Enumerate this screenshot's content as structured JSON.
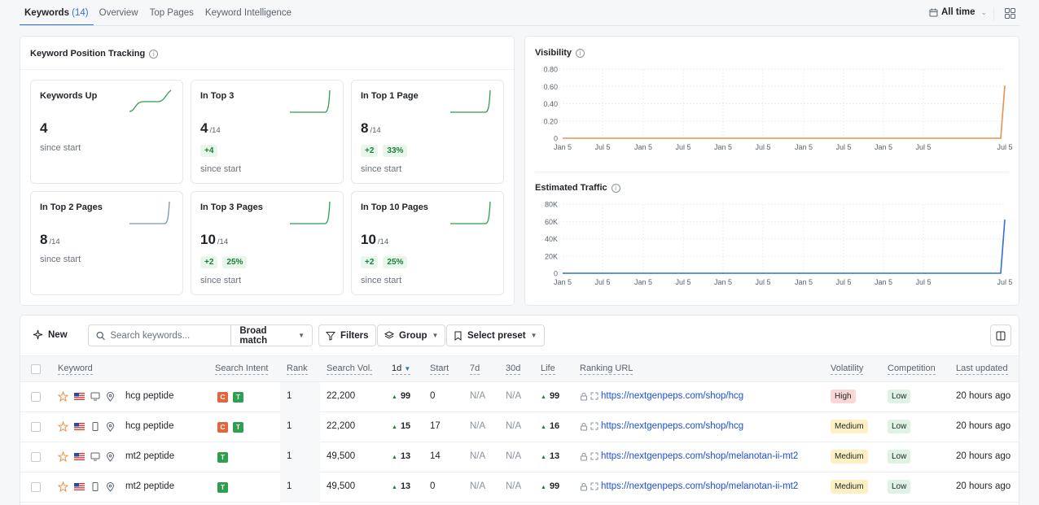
{
  "tabs": [
    {
      "label": "Keywords",
      "count": "(14)"
    },
    {
      "label": "Overview"
    },
    {
      "label": "Top Pages"
    },
    {
      "label": "Keyword Intelligence"
    }
  ],
  "date_range": "All time",
  "tracking": {
    "title": "Keyword Position Tracking",
    "stats": [
      {
        "label": "Keywords Up",
        "value": "4",
        "of": "",
        "chips": [],
        "since": "since start",
        "spark": "s-curve"
      },
      {
        "label": "In Top 3",
        "value": "4",
        "of": "/14",
        "chips": [
          "+4"
        ],
        "since": "since start",
        "spark": "late-rise"
      },
      {
        "label": "In Top 1 Page",
        "value": "8",
        "of": "/14",
        "chips": [
          "+2",
          "33%"
        ],
        "since": "since start",
        "spark": "late-rise"
      },
      {
        "label": "In Top 2 Pages",
        "value": "8",
        "of": "/14",
        "chips": [],
        "since": "since start",
        "spark": "late-rise-blue"
      },
      {
        "label": "In Top 3 Pages",
        "value": "10",
        "of": "/14",
        "chips": [
          "+2",
          "25%"
        ],
        "since": "since start",
        "spark": "late-rise"
      },
      {
        "label": "In Top 10 Pages",
        "value": "10",
        "of": "/14",
        "chips": [
          "+2",
          "25%"
        ],
        "since": "since start",
        "spark": "late-rise"
      }
    ]
  },
  "chart_data": [
    {
      "type": "line",
      "title": "Visibility",
      "x": [
        "Jan 5",
        "Jul 5",
        "Jan 5",
        "Jul 5",
        "Jan 5",
        "Jul 5",
        "Jan 5",
        "Jul 5",
        "Jan 5",
        "Jul 5",
        "Jul 5"
      ],
      "yticks": [
        "0.80",
        "0.60",
        "0.40",
        "0.20",
        "0"
      ],
      "ylim": [
        0,
        0.8
      ],
      "series": [
        {
          "values": [
            0,
            0,
            0,
            0,
            0,
            0,
            0,
            0,
            0,
            0,
            0.61
          ],
          "color": "#e8914a"
        }
      ],
      "grid": true
    },
    {
      "type": "line",
      "title": "Estimated Traffic",
      "x": [
        "Jan 5",
        "Jul 5",
        "Jan 5",
        "Jul 5",
        "Jan 5",
        "Jul 5",
        "Jan 5",
        "Jul 5",
        "Jan 5",
        "Jul 5",
        "Jul 5"
      ],
      "yticks": [
        "80K",
        "60K",
        "40K",
        "20K",
        "0"
      ],
      "ylim": [
        0,
        80000
      ],
      "series": [
        {
          "values": [
            0,
            0,
            0,
            0,
            0,
            0,
            0,
            0,
            0,
            0,
            62000
          ],
          "color": "#2f6fd8"
        }
      ],
      "grid": true
    }
  ],
  "toolbar": {
    "new_label": "New",
    "search_placeholder": "Search keywords...",
    "match_label": "Broad match",
    "filters_label": "Filters",
    "group_label": "Group",
    "preset_label": "Select preset"
  },
  "columns": {
    "keyword": "Keyword",
    "intent": "Search Intent",
    "rank": "Rank",
    "volume": "Search Vol.",
    "d1": "1d",
    "start": "Start",
    "d7": "7d",
    "d30": "30d",
    "life": "Life",
    "url": "Ranking URL",
    "volatility": "Volatility",
    "competition": "Competition",
    "updated": "Last updated"
  },
  "rows": [
    {
      "keyword": "hcg peptide",
      "device": "desktop",
      "intents": [
        "C",
        "T"
      ],
      "rank": "1",
      "volume": "22,200",
      "d1": "99",
      "start": "0",
      "d7": "N/A",
      "d30": "N/A",
      "life": "99",
      "url": "https://nextgenpeps.com/shop/hcg",
      "volatility": "High",
      "competition": "Low",
      "updated": "20 hours ago"
    },
    {
      "keyword": "hcg peptide",
      "device": "mobile",
      "intents": [
        "C",
        "T"
      ],
      "rank": "1",
      "volume": "22,200",
      "d1": "15",
      "start": "17",
      "d7": "N/A",
      "d30": "N/A",
      "life": "16",
      "url": "https://nextgenpeps.com/shop/hcg",
      "volatility": "Medium",
      "competition": "Low",
      "updated": "20 hours ago"
    },
    {
      "keyword": "mt2 peptide",
      "device": "desktop",
      "intents": [
        "T"
      ],
      "rank": "1",
      "volume": "49,500",
      "d1": "13",
      "start": "14",
      "d7": "N/A",
      "d30": "N/A",
      "life": "13",
      "url": "https://nextgenpeps.com/shop/melanotan-ii-mt2",
      "volatility": "Medium",
      "competition": "Low",
      "updated": "20 hours ago"
    },
    {
      "keyword": "mt2 peptide",
      "device": "mobile",
      "intents": [
        "T"
      ],
      "rank": "1",
      "volume": "49,500",
      "d1": "13",
      "start": "0",
      "d7": "N/A",
      "d30": "N/A",
      "life": "99",
      "url": "https://nextgenpeps.com/shop/melanotan-ii-mt2",
      "volatility": "Medium",
      "competition": "Low",
      "updated": "20 hours ago"
    }
  ]
}
